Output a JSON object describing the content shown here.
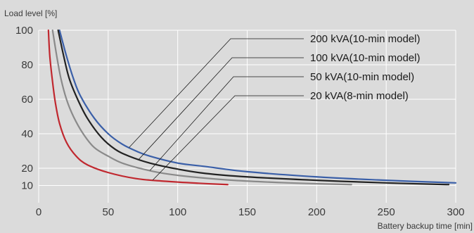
{
  "chart_data": {
    "type": "line",
    "title": "",
    "ylabel": "Load level [%]",
    "xlabel": "Battery backup time [min]",
    "xlim": [
      0,
      300
    ],
    "ylim": [
      0,
      100
    ],
    "x_ticks": [
      0,
      50,
      100,
      150,
      200,
      250,
      300
    ],
    "y_ticks": [
      10,
      20,
      40,
      60,
      80,
      100
    ],
    "grid": true,
    "legend_placement": "top-right",
    "series": [
      {
        "name": "200 kVA(10-min model)",
        "color": "#3a5fa8",
        "points": [
          [
            15,
            100
          ],
          [
            20,
            85
          ],
          [
            25,
            72
          ],
          [
            30,
            62
          ],
          [
            40,
            49
          ],
          [
            50,
            40
          ],
          [
            60,
            34
          ],
          [
            70,
            30
          ],
          [
            80,
            27
          ],
          [
            100,
            23
          ],
          [
            120,
            21
          ],
          [
            150,
            18
          ],
          [
            200,
            15
          ],
          [
            250,
            13
          ],
          [
            300,
            11.5
          ]
        ]
      },
      {
        "name": "100 kVA(10-min model)",
        "color": "#222222",
        "points": [
          [
            14,
            100
          ],
          [
            18,
            85
          ],
          [
            22,
            72
          ],
          [
            28,
            60
          ],
          [
            35,
            49
          ],
          [
            45,
            38
          ],
          [
            55,
            31
          ],
          [
            65,
            27
          ],
          [
            80,
            23
          ],
          [
            100,
            19.5
          ],
          [
            120,
            17
          ],
          [
            150,
            15
          ],
          [
            200,
            13
          ],
          [
            250,
            11.5
          ],
          [
            295,
            10.5
          ]
        ]
      },
      {
        "name": "50 kVA(10-min model)",
        "color": "#8a8a8a",
        "points": [
          [
            10,
            100
          ],
          [
            13,
            85
          ],
          [
            16,
            72
          ],
          [
            20,
            60
          ],
          [
            25,
            50
          ],
          [
            32,
            40
          ],
          [
            40,
            32
          ],
          [
            50,
            27
          ],
          [
            60,
            23
          ],
          [
            75,
            19.5
          ],
          [
            90,
            17
          ],
          [
            110,
            15
          ],
          [
            140,
            13
          ],
          [
            180,
            11.5
          ],
          [
            225,
            10.5
          ]
        ]
      },
      {
        "name": "20 kVA(8-min model)",
        "color": "#c0282f",
        "points": [
          [
            7,
            100
          ],
          [
            8,
            85
          ],
          [
            10,
            70
          ],
          [
            12,
            58
          ],
          [
            15,
            46
          ],
          [
            20,
            35
          ],
          [
            27,
            27
          ],
          [
            35,
            22
          ],
          [
            50,
            17.5
          ],
          [
            70,
            14
          ],
          [
            90,
            12.5
          ],
          [
            115,
            11.3
          ],
          [
            136,
            10.5
          ]
        ]
      }
    ]
  }
}
